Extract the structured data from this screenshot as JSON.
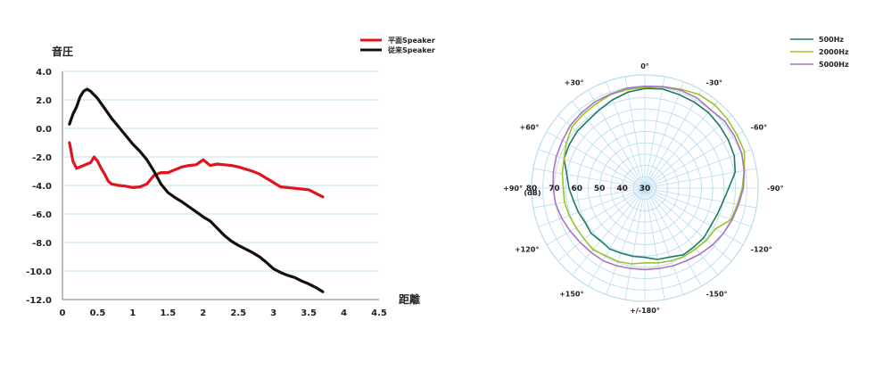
{
  "chart_data": [
    {
      "type": "line",
      "ylabel": "音圧",
      "xlabel": "距離",
      "xlim": [
        0,
        4.5
      ],
      "ylim": [
        -12.0,
        4.0
      ],
      "x_ticks": [
        "0",
        "0.5",
        "1",
        "1.5",
        "2",
        "2.5",
        "3",
        "3.5",
        "4",
        "4.5"
      ],
      "y_ticks": [
        "4.0",
        "2.0",
        "0.0",
        "-2.0",
        "-4.0",
        "-6.0",
        "-8.0",
        "-10.0",
        "-12.0"
      ],
      "grid": "horizontal",
      "legend_position": "top-right",
      "series": [
        {
          "name": "平面Speaker",
          "color": "#e0141e",
          "points": [
            [
              0.1,
              -1.0
            ],
            [
              0.15,
              -2.3
            ],
            [
              0.2,
              -2.8
            ],
            [
              0.3,
              -2.6
            ],
            [
              0.35,
              -2.5
            ],
            [
              0.4,
              -2.4
            ],
            [
              0.45,
              -2.0
            ],
            [
              0.5,
              -2.3
            ],
            [
              0.55,
              -2.8
            ],
            [
              0.6,
              -3.2
            ],
            [
              0.65,
              -3.7
            ],
            [
              0.7,
              -3.9
            ],
            [
              0.8,
              -4.0
            ],
            [
              0.9,
              -4.05
            ],
            [
              1.0,
              -4.15
            ],
            [
              1.1,
              -4.1
            ],
            [
              1.2,
              -3.9
            ],
            [
              1.3,
              -3.3
            ],
            [
              1.4,
              -3.1
            ],
            [
              1.5,
              -3.1
            ],
            [
              1.6,
              -2.9
            ],
            [
              1.7,
              -2.7
            ],
            [
              1.8,
              -2.6
            ],
            [
              1.9,
              -2.55
            ],
            [
              2.0,
              -2.2
            ],
            [
              2.1,
              -2.6
            ],
            [
              2.2,
              -2.5
            ],
            [
              2.3,
              -2.55
            ],
            [
              2.4,
              -2.6
            ],
            [
              2.5,
              -2.7
            ],
            [
              2.6,
              -2.85
            ],
            [
              2.7,
              -3.0
            ],
            [
              2.8,
              -3.2
            ],
            [
              2.9,
              -3.5
            ],
            [
              3.0,
              -3.8
            ],
            [
              3.1,
              -4.1
            ],
            [
              3.2,
              -4.15
            ],
            [
              3.3,
              -4.2
            ],
            [
              3.4,
              -4.25
            ],
            [
              3.5,
              -4.3
            ],
            [
              3.6,
              -4.55
            ],
            [
              3.7,
              -4.8
            ]
          ]
        },
        {
          "name": "従来Speaker",
          "color": "#111111",
          "points": [
            [
              0.1,
              0.3
            ],
            [
              0.15,
              1.0
            ],
            [
              0.2,
              1.5
            ],
            [
              0.25,
              2.2
            ],
            [
              0.3,
              2.6
            ],
            [
              0.35,
              2.75
            ],
            [
              0.4,
              2.6
            ],
            [
              0.5,
              2.1
            ],
            [
              0.6,
              1.4
            ],
            [
              0.7,
              0.7
            ],
            [
              0.8,
              0.1
            ],
            [
              0.9,
              -0.5
            ],
            [
              1.0,
              -1.1
            ],
            [
              1.1,
              -1.6
            ],
            [
              1.2,
              -2.2
            ],
            [
              1.3,
              -3.0
            ],
            [
              1.4,
              -3.9
            ],
            [
              1.5,
              -4.5
            ],
            [
              1.6,
              -4.85
            ],
            [
              1.7,
              -5.15
            ],
            [
              1.8,
              -5.5
            ],
            [
              1.9,
              -5.85
            ],
            [
              2.0,
              -6.2
            ],
            [
              2.1,
              -6.5
            ],
            [
              2.2,
              -7.0
            ],
            [
              2.3,
              -7.5
            ],
            [
              2.4,
              -7.9
            ],
            [
              2.5,
              -8.2
            ],
            [
              2.6,
              -8.45
            ],
            [
              2.7,
              -8.7
            ],
            [
              2.8,
              -9.0
            ],
            [
              2.9,
              -9.4
            ],
            [
              3.0,
              -9.85
            ],
            [
              3.1,
              -10.1
            ],
            [
              3.2,
              -10.3
            ],
            [
              3.3,
              -10.45
            ],
            [
              3.4,
              -10.7
            ],
            [
              3.5,
              -10.9
            ],
            [
              3.6,
              -11.15
            ],
            [
              3.7,
              -11.45
            ]
          ]
        }
      ]
    },
    {
      "type": "polar",
      "radial_unit": "(dB)",
      "radial_ticks": [
        "80",
        "70",
        "60",
        "50",
        "40",
        "30"
      ],
      "angle_labels": [
        {
          "deg": 0,
          "text": "0°"
        },
        {
          "deg": 30,
          "text": "-30°"
        },
        {
          "deg": 60,
          "text": "-60°"
        },
        {
          "deg": 90,
          "text": "-90°"
        },
        {
          "deg": 120,
          "text": "-120°"
        },
        {
          "deg": 150,
          "text": "-150°"
        },
        {
          "deg": 180,
          "text": "+/-180°"
        },
        {
          "deg": 210,
          "text": "+150°"
        },
        {
          "deg": 240,
          "text": "+120°"
        },
        {
          "deg": 270,
          "text": "+90°"
        },
        {
          "deg": 300,
          "text": "+60°"
        },
        {
          "deg": 330,
          "text": "+30°"
        }
      ],
      "legend_position": "top-right",
      "series": [
        {
          "name": "500Hz",
          "color": "#1a7a62",
          "values": [
            74,
            74.5,
            74,
            73.8,
            73.6,
            73,
            72.5,
            72,
            70.5,
            67,
            65,
            64,
            63.5,
            64,
            63.8,
            64,
            62.4,
            62,
            60.6,
            60.6,
            60.6,
            61,
            60.4,
            61,
            60.4,
            61.2,
            62,
            63.5,
            65,
            68,
            68.5,
            69,
            69,
            70,
            71.5,
            73
          ]
        },
        {
          "name": "2000Hz",
          "color": "#9ac42a",
          "values": [
            74.5,
            75.5,
            76.5,
            77.8,
            78,
            77.5,
            77,
            76.8,
            74.5,
            73,
            71.5,
            70.5,
            66,
            65.6,
            65,
            64.8,
            64.2,
            63.5,
            63,
            64,
            64.5,
            64.5,
            65.5,
            65,
            65,
            65.5,
            66,
            66,
            67,
            68,
            70,
            72,
            72.5,
            73,
            74,
            74.2
          ]
        },
        {
          "name": "5000Hz",
          "color": "#a974bf",
          "values": [
            75,
            75.5,
            76,
            76,
            75.2,
            76,
            75.8,
            75.5,
            74.5,
            73.5,
            72,
            71,
            70,
            69,
            68,
            67,
            66.5,
            66,
            66,
            66,
            66.5,
            67,
            67,
            67.3,
            68,
            69,
            70,
            70.5,
            71,
            71.5,
            72,
            73,
            73.5,
            74,
            74.2,
            74.8
          ]
        }
      ]
    }
  ]
}
